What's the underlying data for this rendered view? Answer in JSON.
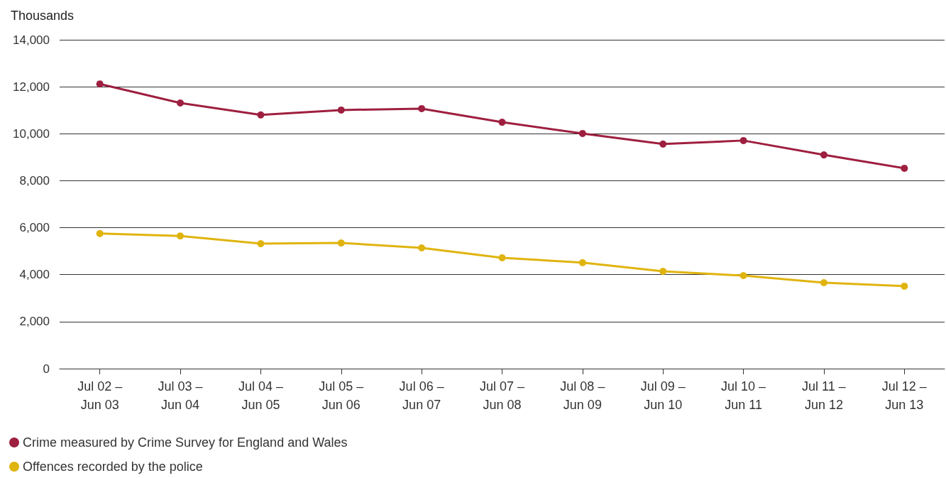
{
  "chart_data": {
    "type": "line",
    "ylabel": "Thousands",
    "categories": [
      "Jul 02 –\nJun 03",
      "Jul 03 –\nJun 04",
      "Jul 04 –\nJun 05",
      "Jul 05 –\nJun 06",
      "Jul 06 –\nJun 07",
      "Jul 07 –\nJun 08",
      "Jul 08 –\nJun 09",
      "Jul 09 –\nJun 10",
      "Jul 10 –\nJun 11",
      "Jul 11 –\nJun 12",
      "Jul 12 –\nJun 13"
    ],
    "series": [
      {
        "name": "Crime measured by Crime Survey for England and Wales",
        "color": "#9e1f3f",
        "values": [
          12120,
          11310,
          10800,
          11010,
          11070,
          10490,
          10010,
          9560,
          9710,
          9100,
          8530
        ]
      },
      {
        "name": "Offences recorded by the police",
        "color": "#e0b40f",
        "values": [
          5750,
          5650,
          5320,
          5350,
          5140,
          4720,
          4510,
          4140,
          3960,
          3660,
          3510
        ]
      }
    ],
    "ylim": [
      0,
      14000
    ],
    "yticks": [
      0,
      {
        "value": 2000,
        "label": "2,000"
      },
      {
        "value": 4000,
        "label": "4,000"
      },
      {
        "value": 6000,
        "label": "6,000"
      },
      {
        "value": 8000,
        "label": "8,000"
      },
      {
        "value": 10000,
        "label": "10,000"
      },
      {
        "value": 12000,
        "label": "12,000"
      },
      {
        "value": 14000,
        "label": "14,000"
      }
    ],
    "grid": "y",
    "legend": "bottom left",
    "marker": "circle",
    "line_style": "solid"
  }
}
